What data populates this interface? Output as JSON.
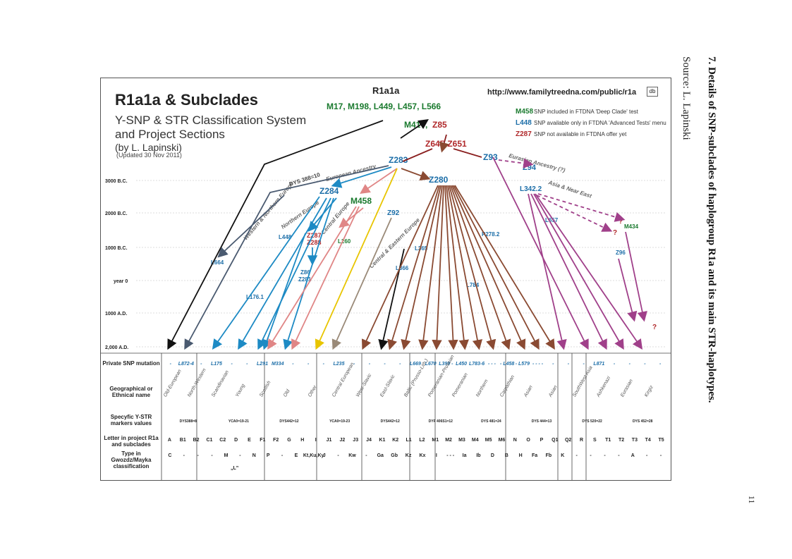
{
  "header": {
    "title": "R1a1a & Subclades",
    "subtitle_lines": [
      "Y-SNP & STR Classification System",
      "and Project Sections"
    ],
    "author": "(by L. Lapinski)",
    "updated": "(Updated 30 Nov 2011)",
    "url": "http://www.familytreedna.com/public/r1a",
    "url_icon": "db"
  },
  "legend": [
    {
      "code": "M458",
      "text": "SNP included in FTDNA 'Deep Clade' test",
      "color": "#1a7a2e"
    },
    {
      "code": "L448",
      "text": "SNP available only in FTDNA 'Advanced Tests' menu",
      "color": "#1c6ea8"
    },
    {
      "code": "Z287",
      "text": "SNP not available in FTDNA offer yet",
      "color": "#b0282a"
    }
  ],
  "nodes": {
    "root_label": "R1a1a",
    "root_snps": "M17, M198, L449, L457, L566",
    "m417": "M417,",
    "z85": "Z85",
    "z645": "Z645-Z651",
    "z283": "Z283",
    "z93": "Z93",
    "z94": "Z94",
    "z280": "Z280",
    "z284": "Z284",
    "m458": "M458",
    "l342": "L342.2",
    "z92": "Z92",
    "l448": "L448",
    "z287": "Z287",
    "z288": "Z288",
    "l260": "L260",
    "l365": "L365",
    "l366": "L366",
    "p278": "P278.2",
    "l657": "L657",
    "m434": "M434",
    "z96": "Z96",
    "l664": "L664",
    "z86": "Z86",
    "z281": "Z281",
    "l176": "L176.1",
    "l784": "L784",
    "q1": "?",
    "q2": "?",
    "q3": "?",
    "q4": "?"
  },
  "branch_labels": {
    "dys": "DYS 388=10",
    "european": "European Ancestry",
    "eurasian": "Eurasian Ancestry (?)",
    "asia": "Asia & Near East",
    "western": "Western & Northern Europe",
    "northern": "Northern Europe",
    "central": "Central Europe",
    "ce_europe": "Central & Eastern Europe"
  },
  "timeline": [
    "3000 B.C.",
    "2000 B.C.",
    "1000 B.C.",
    "year 0",
    "1000 A.D.",
    "2,000 A.D."
  ],
  "table": {
    "row_labels": {
      "snp": "Private SNP mutation",
      "geo": "Geographical or Ethnical name",
      "str": "Specyfic Y-STR markers values",
      "letter": "Letter in project R1a and subclades",
      "type": "Type in Gwozdz/Mayka classification"
    },
    "snps": [
      {
        "text": "-"
      },
      {
        "text": "L872-4"
      },
      {
        "text": "-"
      },
      {
        "text": "L175"
      },
      {
        "text": "-"
      },
      {
        "text": "-"
      },
      {
        "text": "L291"
      },
      {
        "text": "M334"
      },
      {
        "text": "-"
      },
      {
        "text": "-"
      },
      {
        "text": "-"
      },
      {
        "text": "L235"
      },
      {
        "text": "-"
      },
      {
        "text": "-"
      },
      {
        "text": "-"
      },
      {
        "text": "-"
      },
      {
        "text": "L669"
      },
      {
        "text": "L670"
      },
      {
        "text": "L399 -"
      },
      {
        "text": "L450"
      },
      {
        "text": "L783-6"
      },
      {
        "text": "- - -"
      },
      {
        "text": "- L458"
      },
      {
        "text": "- L579"
      },
      {
        "text": "- - - -"
      },
      {
        "text": "-"
      },
      {
        "text": "-"
      },
      {
        "text": "-"
      },
      {
        "text": "L871"
      },
      {
        "text": "-"
      },
      {
        "text": "-"
      },
      {
        "text": "-"
      },
      {
        "text": "-"
      }
    ],
    "names": [
      "Old-European",
      "North-Western",
      "Scandinavian",
      "Young",
      "Scottish",
      "Old",
      "Other",
      "Central European",
      "West-Slavic",
      "East-Slavic",
      "Baltic (Prusso-Lith.)",
      "Pomeranian-Prussian",
      "Pomeranian",
      "Northern",
      "Carpathian",
      "Asian",
      "Asian",
      "SouthWest Asia",
      "Ashkenazi",
      "Eurasian",
      "Kirgiz"
    ],
    "strs": [
      "DYS388=8",
      "YCA0=19-21",
      "DYS442=12",
      "YCA0=19-23",
      "DYS442=12",
      "DYF 406S1=12",
      "DYS 481=24",
      "DYS 444=13",
      "DYS 520=22",
      "DYS 452=28"
    ],
    "letters": [
      "A",
      "B1",
      "B2",
      "C1",
      "C2",
      "D",
      "E",
      "F1",
      "F2",
      "G",
      "H",
      "I",
      "J1",
      "J2",
      "J3",
      "J4",
      "K1",
      "K2",
      "L1",
      "L2",
      "M1",
      "M2",
      "M3",
      "M4",
      "M5",
      "M6",
      "N",
      "O",
      "P",
      "Q1",
      "Q2",
      "R",
      "S",
      "T1",
      "T2",
      "T3",
      "T4",
      "T5"
    ],
    "types": [
      "C",
      "-",
      "-",
      "-",
      "M",
      "-",
      "N",
      "P",
      "-",
      "E",
      "Kt,Ku,Ky",
      "J",
      "-",
      "Kw",
      "-",
      "Ga",
      "Gb",
      "Kz",
      "Kx",
      "I",
      "- - -",
      "Ia",
      "Ib",
      "D",
      "B",
      "H",
      "Fa",
      "Fb",
      "K",
      "-",
      "-",
      "-",
      "-",
      "A",
      "-",
      "-"
    ],
    "type_extra": "„L”"
  },
  "caption": {
    "title": "7. Details of SNP-subclades of haplogroup R1a and its main STR-haplotypes.",
    "source": "Source: L. Lapinski"
  },
  "page_number": "11"
}
